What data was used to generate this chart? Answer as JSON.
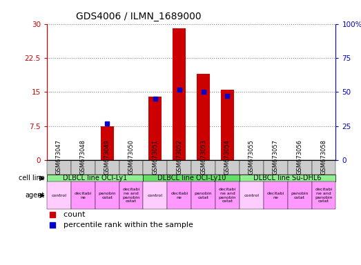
{
  "title": "GDS4006 / ILMN_1689000",
  "samples": [
    "GSM673047",
    "GSM673048",
    "GSM673049",
    "GSM673050",
    "GSM673051",
    "GSM673052",
    "GSM673053",
    "GSM673054",
    "GSM673055",
    "GSM673057",
    "GSM673056",
    "GSM673058"
  ],
  "count_values": [
    0,
    0,
    7.5,
    0,
    14,
    29,
    19,
    15.5,
    0,
    0,
    0,
    0
  ],
  "percentile_values": [
    null,
    null,
    27,
    null,
    45,
    52,
    50,
    47,
    null,
    null,
    null,
    null
  ],
  "ylim_left": [
    0,
    30
  ],
  "ylim_right": [
    0,
    100
  ],
  "yticks_left": [
    0,
    7.5,
    15,
    22.5,
    30
  ],
  "ytick_labels_left": [
    "0",
    "7.5",
    "15",
    "22.5",
    "30"
  ],
  "yticks_right": [
    0,
    25,
    50,
    75,
    100
  ],
  "ytick_labels_right": [
    "0",
    "25",
    "50",
    "75",
    "100%"
  ],
  "cell_line_groups": [
    {
      "label": "DLBCL line OCI-Ly1",
      "start": 0,
      "end": 4,
      "color": "#90EE90"
    },
    {
      "label": "DLBCL line OCI-Ly10",
      "start": 4,
      "end": 8,
      "color": "#66DD66"
    },
    {
      "label": "DLBCL line Su-DHL6",
      "start": 8,
      "end": 12,
      "color": "#90EE90"
    }
  ],
  "agents": [
    "control",
    "decitabi\nne",
    "panobin\nostat",
    "decitabi\nne and\npanobin\nostat",
    "control",
    "decitabi\nne",
    "panobin\nostat",
    "decitabi\nne and\npanobin\nostat",
    "control",
    "decitabi\nne",
    "panobin\nostat",
    "decitabi\nne and\npanobin\nostat"
  ],
  "agent_colors": [
    "#FFCCFF",
    "#FF99FF",
    "#FF99FF",
    "#FF99FF",
    "#FFCCFF",
    "#FF99FF",
    "#FF99FF",
    "#FF99FF",
    "#FFCCFF",
    "#FF99FF",
    "#FF99FF",
    "#FF99FF"
  ],
  "bar_color": "#CC0000",
  "dot_color": "#0000CC",
  "xtick_bg": "#CCCCCC",
  "left_axis_color": "#CC0000",
  "right_axis_color": "#0000BB",
  "title_fontsize": 10,
  "legend_fontsize": 8,
  "tick_fontsize": 7.5,
  "xtick_fontsize": 6,
  "annot_fontsize": 7
}
